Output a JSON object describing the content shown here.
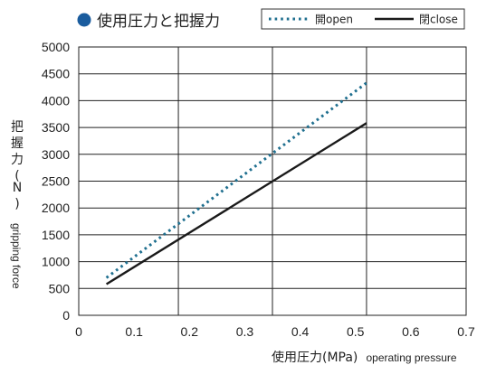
{
  "chart_data": {
    "type": "line",
    "title": "使用圧力と把握力",
    "title_bullet_color": "#1a5c9e",
    "xlabel": "使用圧力(MPa)",
    "xlabel_en": "operating pressure",
    "ylabel": "把握力(N)",
    "ylabel_en": "gripping force",
    "xlim": [
      0,
      0.7
    ],
    "ylim": [
      0,
      5000
    ],
    "xticks": [
      "0",
      "0.1",
      "0.2",
      "0.3",
      "0.4",
      "0.5",
      "0.6",
      "0.7"
    ],
    "yticks": [
      "0",
      "500",
      "1000",
      "1500",
      "2000",
      "2500",
      "3000",
      "3500",
      "4000",
      "4500",
      "5000"
    ],
    "x_gridlines": [
      0.18,
      0.35,
      0.52
    ],
    "y_grid": true,
    "legend_position": "top-right",
    "series": [
      {
        "name": "開open",
        "style": "dotted",
        "color": "#1f6f8f",
        "points": [
          [
            0.05,
            700
          ],
          [
            0.52,
            4330
          ]
        ]
      },
      {
        "name": "閉close",
        "style": "solid",
        "color": "#1a1a1a",
        "points": [
          [
            0.05,
            580
          ],
          [
            0.52,
            3580
          ]
        ]
      }
    ]
  }
}
